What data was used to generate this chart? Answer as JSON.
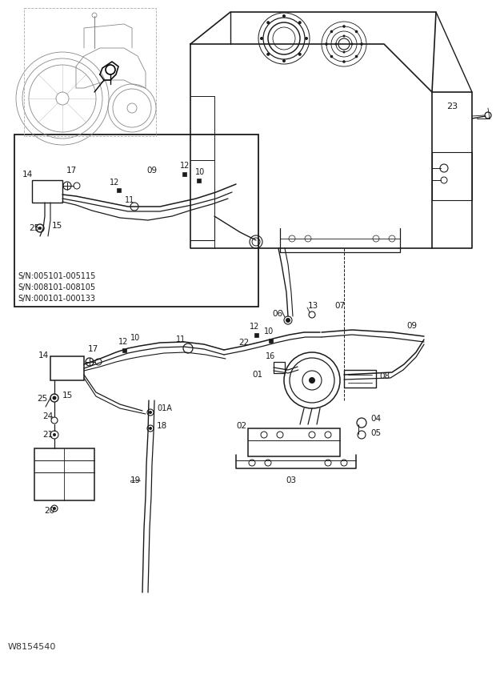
{
  "background_color": "#f5f5f5",
  "line_color": "#1a1a1a",
  "fig_width": 6.2,
  "fig_height": 8.73,
  "dpi": 100,
  "watermark": "W8154540",
  "sn_text": [
    "S/N:005101-005115",
    "S/N:008101-008105",
    "S/N:000101-000133"
  ]
}
